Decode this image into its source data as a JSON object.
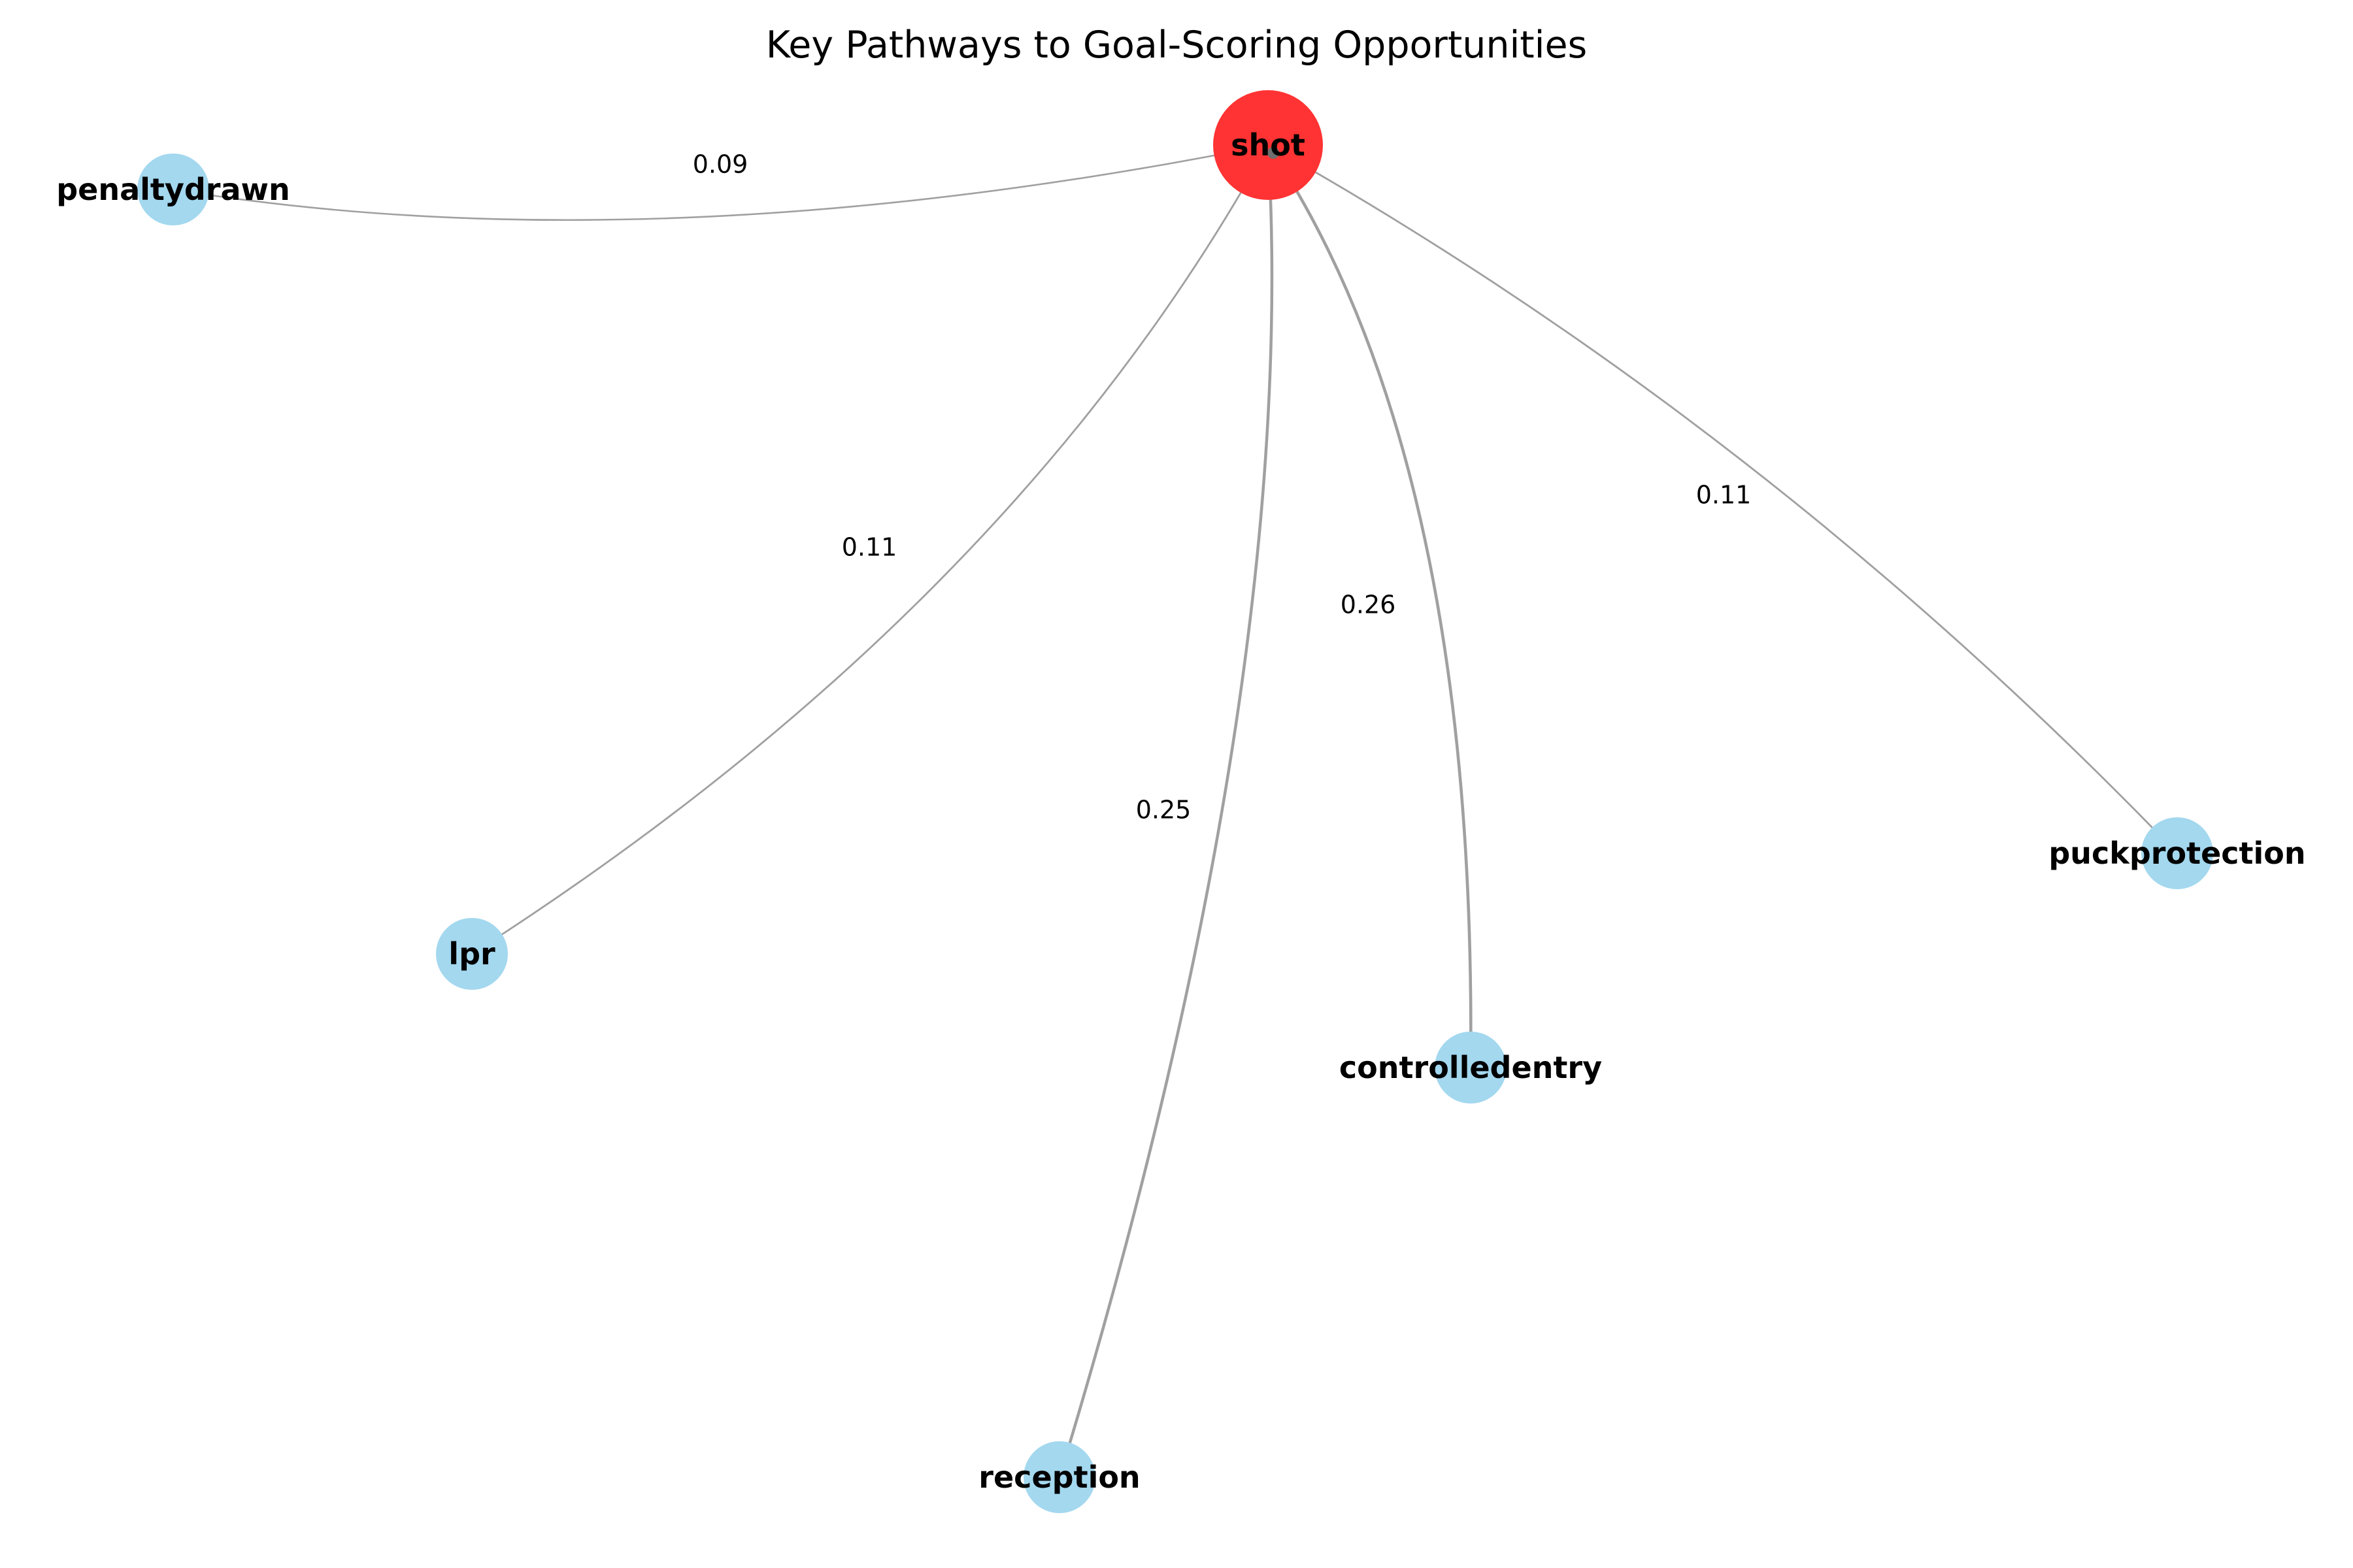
{
  "title": "Key Pathways to Goal-Scoring Opportunities",
  "colors": {
    "target_node": "#ff3333",
    "source_node": "#a3d8ef",
    "edge": "#a0a0a0",
    "text": "#000000"
  },
  "target": {
    "id": "shot",
    "label": "shot"
  },
  "nodes": [
    {
      "id": "penaltydrawn",
      "label": "penaltydrawn"
    },
    {
      "id": "lpr",
      "label": "lpr"
    },
    {
      "id": "reception",
      "label": "reception"
    },
    {
      "id": "controlledentry",
      "label": "controlledentry"
    },
    {
      "id": "puckprotection",
      "label": "puckprotection"
    }
  ],
  "edges": [
    {
      "source": "penaltydrawn",
      "target": "shot",
      "weight": "0.09"
    },
    {
      "source": "lpr",
      "target": "shot",
      "weight": "0.11"
    },
    {
      "source": "reception",
      "target": "shot",
      "weight": "0.25"
    },
    {
      "source": "controlledentry",
      "target": "shot",
      "weight": "0.26"
    },
    {
      "source": "puckprotection",
      "target": "shot",
      "weight": "0.11"
    }
  ]
}
